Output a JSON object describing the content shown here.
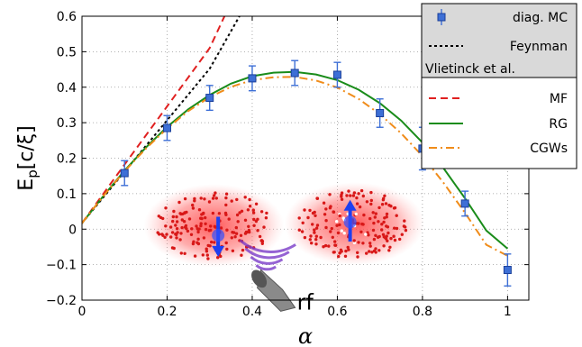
{
  "chart_data": {
    "type": "line",
    "xlabel": "α",
    "ylabel": "E",
    "ylabel_sub": "p",
    "ylabel_unit": "[c/ξ]",
    "xlim": [
      0,
      1.05
    ],
    "ylim": [
      -0.2,
      0.6
    ],
    "xticks": [
      0,
      0.2,
      0.4,
      0.6,
      0.8,
      1
    ],
    "yticks": [
      -0.2,
      -0.1,
      0,
      0.1,
      0.2,
      0.3,
      0.4,
      0.5,
      0.6
    ],
    "xtick_labels": [
      "0",
      "0.2",
      "0.4",
      "0.6",
      "0.8",
      "1"
    ],
    "ytick_labels": [
      "−0.2",
      "−0.1",
      "0",
      "0.1",
      "0.2",
      "0.3",
      "0.4",
      "0.5",
      "0.6"
    ],
    "grid": true,
    "legend_position": "top-right",
    "inset_label": "rf",
    "series": [
      {
        "name": "diag. MC",
        "color": "#3d6fd6",
        "style": "markers-errorbars",
        "x": [
          0.1,
          0.2,
          0.3,
          0.4,
          0.5,
          0.6,
          0.7,
          0.8,
          0.9,
          1.0
        ],
        "y": [
          0.158,
          0.285,
          0.37,
          0.425,
          0.44,
          0.435,
          0.327,
          0.227,
          0.072,
          -0.115
        ],
        "err": [
          0.035,
          0.035,
          0.035,
          0.035,
          0.035,
          0.035,
          0.04,
          0.06,
          0.035,
          0.045
        ]
      },
      {
        "name": "Feynman",
        "color": "#000000",
        "style": "dotted",
        "x": [
          0,
          0.1,
          0.2,
          0.3,
          0.37
        ],
        "y": [
          0.017,
          0.162,
          0.307,
          0.452,
          0.6
        ]
      },
      {
        "name": "MF",
        "color": "#e02020",
        "style": "dashed",
        "x": [
          0,
          0.1,
          0.2,
          0.3,
          0.335
        ],
        "y": [
          0.017,
          0.182,
          0.346,
          0.51,
          0.6
        ]
      },
      {
        "name": "RG",
        "color": "#1a8c1a",
        "style": "solid",
        "x": [
          0,
          0.05,
          0.1,
          0.15,
          0.2,
          0.25,
          0.3,
          0.35,
          0.4,
          0.45,
          0.5,
          0.55,
          0.6,
          0.65,
          0.7,
          0.75,
          0.8,
          0.85,
          0.9,
          0.95,
          1.0
        ],
        "y": [
          0.017,
          0.093,
          0.165,
          0.23,
          0.288,
          0.338,
          0.378,
          0.41,
          0.431,
          0.441,
          0.443,
          0.436,
          0.42,
          0.393,
          0.355,
          0.306,
          0.244,
          0.171,
          0.087,
          -0.004,
          -0.055
        ]
      },
      {
        "name": "CGWs",
        "color": "#f08c1a",
        "style": "dashdot",
        "x": [
          0,
          0.05,
          0.1,
          0.15,
          0.2,
          0.25,
          0.3,
          0.35,
          0.4,
          0.45,
          0.5,
          0.55,
          0.6,
          0.65,
          0.7,
          0.75,
          0.8,
          0.85,
          0.9,
          0.95,
          1.0
        ],
        "y": [
          0.017,
          0.093,
          0.163,
          0.227,
          0.284,
          0.333,
          0.372,
          0.401,
          0.42,
          0.428,
          0.429,
          0.419,
          0.399,
          0.367,
          0.324,
          0.27,
          0.206,
          0.13,
          0.046,
          -0.044,
          -0.075
        ]
      }
    ],
    "legend": [
      {
        "label": "diag. MC",
        "series": 0
      },
      {
        "label": "Feynman",
        "series": 1
      },
      {
        "label": "Vlietinck et al.",
        "series": -1
      },
      {
        "label": "MF",
        "series": 2
      },
      {
        "label": "RG",
        "series": 3
      },
      {
        "label": "CGWs",
        "series": 4
      }
    ]
  }
}
